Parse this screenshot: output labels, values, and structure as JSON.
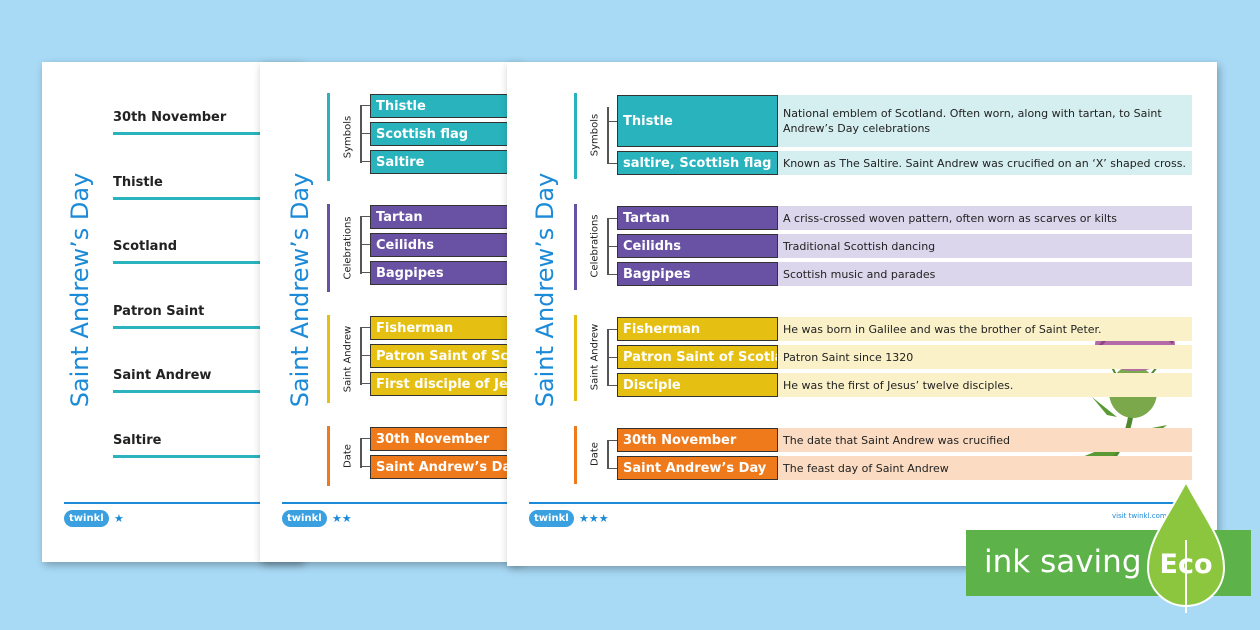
{
  "sheet1": {
    "title": "Saint Andrew’s Day",
    "words": [
      "30th November",
      "Thistle",
      "Scotland",
      "Patron Saint",
      "Saint Andrew",
      "Saltire"
    ],
    "logo": "twinkl"
  },
  "sheet2": {
    "title": "Saint Andrew’s Day",
    "groups": [
      {
        "label": "Symbols",
        "terms": [
          "Thistle",
          "Scottish flag",
          "Saltire"
        ]
      },
      {
        "label": "Celebrations",
        "terms": [
          "Tartan",
          "Ceilidhs",
          "Bagpipes"
        ]
      },
      {
        "label": "Saint Andrew",
        "terms": [
          "Fisherman",
          "Patron Saint of Scotland",
          "First disciple of Jesus"
        ]
      },
      {
        "label": "Date",
        "terms": [
          "30th November",
          "Saint Andrew’s Day"
        ]
      }
    ],
    "logo": "twinkl"
  },
  "sheet3": {
    "title": "Saint Andrew’s Day",
    "groups": [
      {
        "label": "Symbols",
        "rows": [
          {
            "term": "Thistle",
            "definition": "National emblem of Scotland. Often worn, along with tartan, to Saint Andrew’s Day celebrations"
          },
          {
            "term": "saltire, Scottish flag",
            "definition": "Known as The Saltire. Saint Andrew was crucified on an ‘X’ shaped cross."
          }
        ]
      },
      {
        "label": "Celebrations",
        "rows": [
          {
            "term": "Tartan",
            "definition": "A criss-crossed woven pattern, often worn as scarves or kilts"
          },
          {
            "term": "Ceilidhs",
            "definition": "Traditional Scottish dancing"
          },
          {
            "term": "Bagpipes",
            "definition": "Scottish music and parades"
          }
        ]
      },
      {
        "label": "Saint Andrew",
        "rows": [
          {
            "term": "Fisherman",
            "definition": "He was born in Galilee and was the brother of Saint Peter."
          },
          {
            "term": "Patron Saint of Scotland",
            "definition": "Patron Saint since 1320"
          },
          {
            "term": "Disciple",
            "definition": "He was the first of Jesus’ twelve disciples."
          }
        ]
      },
      {
        "label": "Date",
        "rows": [
          {
            "term": "30th November",
            "definition": "The date that Saint Andrew was crucified"
          },
          {
            "term": "Saint Andrew’s Day",
            "definition": "The feast day of Saint Andrew"
          }
        ]
      }
    ],
    "logo": "twinkl",
    "footer": "visit twinkl.com"
  },
  "badge": {
    "text": "ink saving",
    "eco": "Eco"
  }
}
